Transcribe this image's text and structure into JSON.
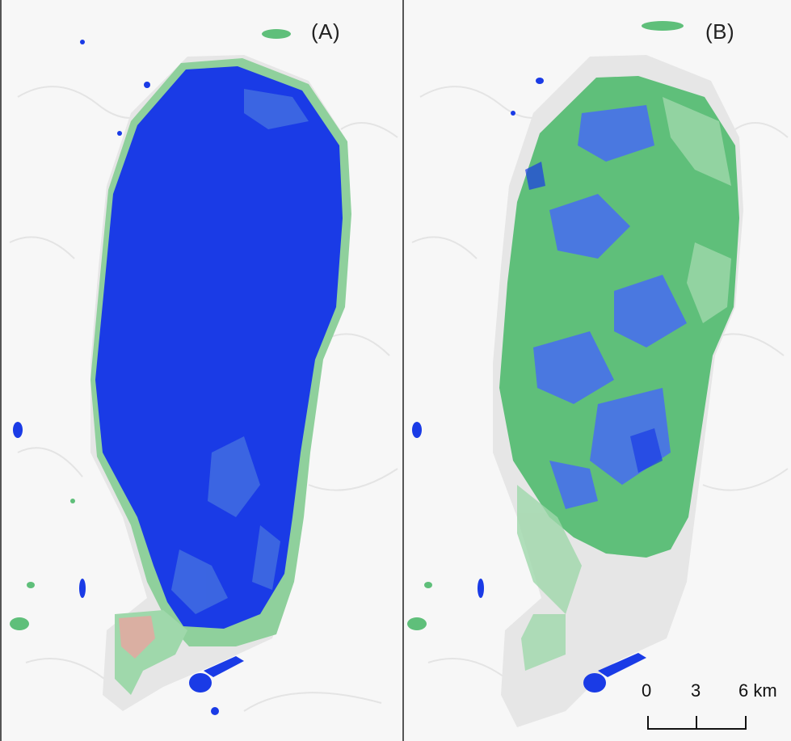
{
  "panels": [
    {
      "label": "(A)"
    },
    {
      "label": "(B)"
    }
  ],
  "scale_bar": {
    "labels": [
      "0",
      "3",
      "6 km"
    ]
  },
  "colors": {
    "water_deep": "#1a3be6",
    "water_mixed": "#4a78e0",
    "vegetation": "#5fbf7a",
    "vegetation_light": "#9fd8ab",
    "bare_pink": "#e8a5a0",
    "basin_grey": "#e6e6e6",
    "terrain": "#f7f7f7"
  }
}
